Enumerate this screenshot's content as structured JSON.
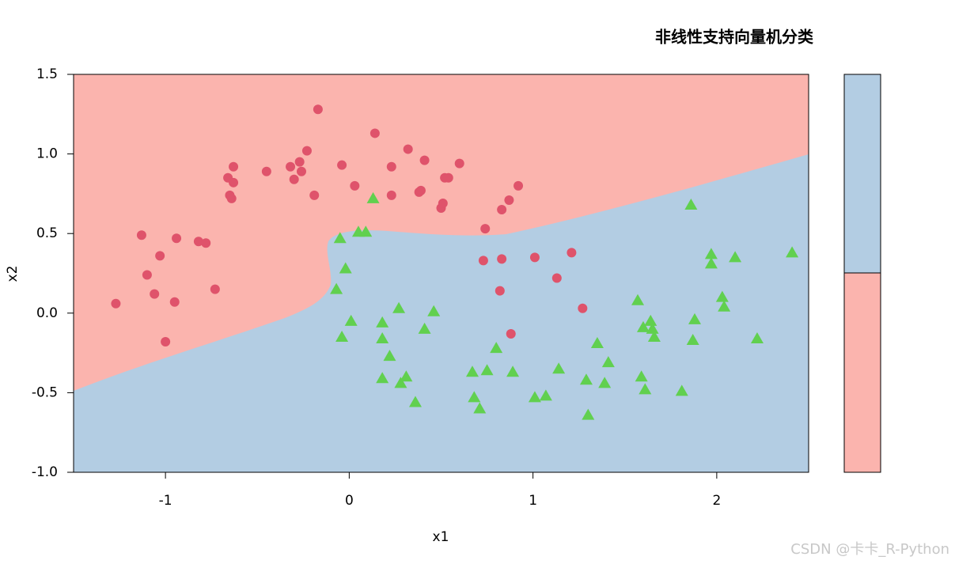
{
  "chart_data": {
    "type": "scatter",
    "title": "非线性支持向量机分类",
    "x_label": "x1",
    "y_label": "x2",
    "xlim": [
      -1.5,
      2.5
    ],
    "ylim": [
      -1.0,
      1.5
    ],
    "xticks": [
      -1,
      0,
      1,
      2
    ],
    "yticks": [
      {
        "value": -1,
        "label": "-1.0"
      },
      -0.5,
      {
        "value": 0,
        "label": "0.0"
      },
      0.5,
      {
        "value": 1,
        "label": "1.0"
      },
      1.5
    ],
    "series": [
      {
        "marker": "circle",
        "color": "#df536b",
        "x": [
          -1.27,
          -1.13,
          -1.1,
          -1.03,
          -1.06,
          -1.0,
          -0.94,
          -0.95,
          -0.82,
          -0.78,
          -0.73,
          -0.66,
          -0.63,
          -0.63,
          -0.65,
          -0.64,
          -0.45,
          -0.32,
          -0.3,
          -0.27,
          -0.26,
          -0.23,
          -0.19,
          -0.17,
          -0.04,
          0.03,
          0.14,
          0.23,
          0.23,
          0.32,
          0.38,
          0.39,
          0.41,
          0.5,
          0.51,
          0.52,
          0.54,
          0.6,
          0.74,
          0.73,
          0.83,
          0.83,
          0.87,
          0.92,
          0.82,
          0.88,
          1.01,
          1.13,
          1.21,
          1.27
        ],
        "values": [
          0.06,
          0.49,
          0.24,
          0.36,
          0.12,
          -0.18,
          0.47,
          0.07,
          0.45,
          0.44,
          0.15,
          0.85,
          0.92,
          0.82,
          0.74,
          0.72,
          0.89,
          0.92,
          0.84,
          0.95,
          0.89,
          1.02,
          0.74,
          1.28,
          0.93,
          0.8,
          1.13,
          0.74,
          0.92,
          1.03,
          0.76,
          0.77,
          0.96,
          0.66,
          0.69,
          0.85,
          0.85,
          0.94,
          0.53,
          0.33,
          0.34,
          0.65,
          0.71,
          0.8,
          0.14,
          -0.13,
          0.35,
          0.22,
          0.38,
          0.03
        ]
      },
      {
        "marker": "triangle",
        "color": "#61d04f",
        "x": [
          0.13,
          -0.05,
          0.05,
          0.09,
          -0.02,
          -0.07,
          0.01,
          -0.04,
          0.18,
          0.18,
          0.27,
          0.22,
          0.18,
          0.28,
          0.31,
          0.36,
          0.41,
          0.46,
          0.67,
          0.68,
          0.71,
          0.75,
          0.8,
          0.89,
          1.01,
          1.07,
          1.14,
          1.29,
          1.3,
          1.35,
          1.39,
          1.41,
          1.57,
          1.59,
          1.61,
          1.6,
          1.64,
          1.65,
          1.66,
          1.86,
          1.81,
          1.87,
          1.88,
          1.97,
          1.97,
          2.03,
          2.04,
          2.1,
          2.22,
          2.41
        ],
        "values": [
          0.72,
          0.47,
          0.51,
          0.51,
          0.28,
          0.15,
          -0.05,
          -0.15,
          -0.06,
          -0.16,
          0.03,
          -0.27,
          -0.41,
          -0.44,
          -0.4,
          -0.56,
          -0.1,
          0.01,
          -0.37,
          -0.53,
          -0.6,
          -0.36,
          -0.22,
          -0.37,
          -0.53,
          -0.52,
          -0.35,
          -0.42,
          -0.64,
          -0.19,
          -0.44,
          -0.31,
          0.08,
          -0.4,
          -0.48,
          -0.09,
          -0.05,
          -0.1,
          -0.15,
          0.68,
          -0.49,
          -0.17,
          -0.04,
          0.37,
          0.31,
          0.1,
          0.04,
          0.35,
          -0.16,
          0.38
        ]
      }
    ]
  },
  "watermark": "CSDN @卡卡_R-Python"
}
